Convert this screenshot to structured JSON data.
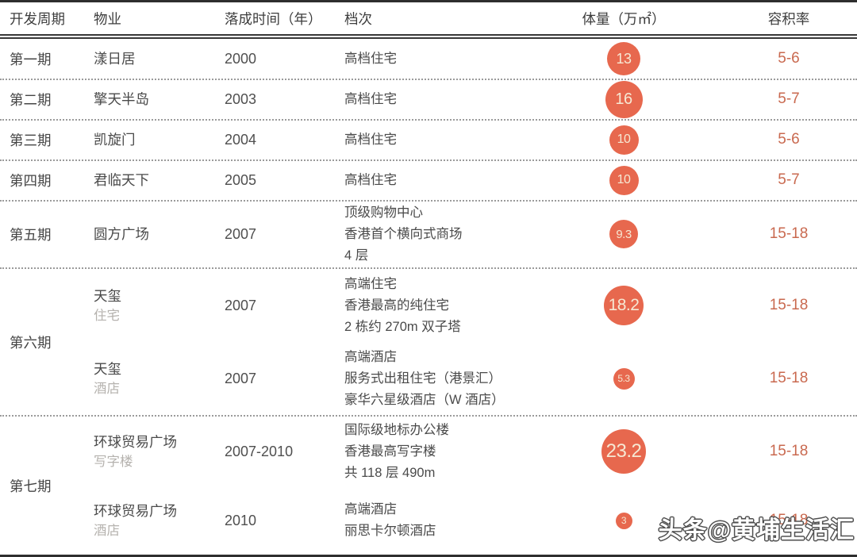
{
  "header": {
    "phase": "开发周期",
    "property": "物业",
    "year": "落成时间（年）",
    "grade": "档次",
    "volume": "体量（万㎡）",
    "ratio": "容积率"
  },
  "rows": [
    {
      "phase": "第一期",
      "property": "漾日居",
      "year": "2000",
      "grade": [
        "高档住宅"
      ],
      "volume": 13,
      "ratio": "5-6"
    },
    {
      "phase": "第二期",
      "property": "擎天半岛",
      "year": "2003",
      "grade": [
        "高档住宅"
      ],
      "volume": 16,
      "ratio": "5-7"
    },
    {
      "phase": "第三期",
      "property": "凯旋门",
      "year": "2004",
      "grade": [
        "高档住宅"
      ],
      "volume": 10,
      "ratio": "5-6"
    },
    {
      "phase": "第四期",
      "property": "君临天下",
      "year": "2005",
      "grade": [
        "高档住宅"
      ],
      "volume": 10,
      "ratio": "5-7"
    },
    {
      "phase": "第五期",
      "property": "圆方广场",
      "year": "2007",
      "grade": [
        "顶级购物中心",
        "香港首个横向式商场",
        "4 层"
      ],
      "volume": 9.3,
      "ratio": "15-18"
    },
    {
      "phase": "第六期",
      "property": "天玺",
      "sub": "住宅",
      "year": "2007",
      "grade": [
        "高端住宅",
        "香港最高的纯住宅",
        "2 栋约 270m 双子塔"
      ],
      "volume": 18.2,
      "ratio": "15-18"
    },
    {
      "property": "天玺",
      "sub": "酒店",
      "year": "2007",
      "grade": [
        "高端酒店",
        "服务式出租住宅（港景汇）",
        "豪华六星级酒店（W 酒店）"
      ],
      "volume": 5.3,
      "ratio": "15-18"
    },
    {
      "phase": "第七期",
      "property": "环球贸易广场",
      "sub": "写字楼",
      "year": "2007-2010",
      "grade": [
        "国际级地标办公楼",
        "香港最高写字楼",
        "共 118 层 490m"
      ],
      "volume": 23.2,
      "ratio": "15-18"
    },
    {
      "property": "环球贸易广场",
      "sub": "酒店",
      "year": "2010",
      "grade": [
        "高端酒店",
        "丽思卡尔顿酒店"
      ],
      "volume": 3,
      "ratio": "15-18"
    }
  ],
  "watermark": "头条@黄埔生活汇",
  "colors": {
    "bubble_fill": "#e7684e",
    "bubble_text": "#f6e8d3",
    "ratio_text": "#c9694f",
    "rule_dark": "#2e2e2e",
    "sub_label_gray": "#b5b2ae"
  },
  "chart_data": {
    "type": "table",
    "columns": [
      "开发周期",
      "物业",
      "落成时间（年）",
      "档次",
      "体量（万㎡）",
      "容积率"
    ],
    "rows": [
      [
        "第一期",
        "漾日居",
        "2000",
        "高档住宅",
        13,
        "5-6"
      ],
      [
        "第二期",
        "擎天半岛",
        "2003",
        "高档住宅",
        16,
        "5-7"
      ],
      [
        "第三期",
        "凯旋门",
        "2004",
        "高档住宅",
        10,
        "5-6"
      ],
      [
        "第四期",
        "君临天下",
        "2005",
        "高档住宅",
        10,
        "5-7"
      ],
      [
        "第五期",
        "圆方广场",
        "2007",
        "顶级购物中心；香港首个横向式商场；4 层",
        9.3,
        "15-18"
      ],
      [
        "第六期",
        "天玺（住宅）",
        "2007",
        "高端住宅；香港最高的纯住宅；2 栋约 270m 双子塔",
        18.2,
        "15-18"
      ],
      [
        "第六期",
        "天玺（酒店）",
        "2007",
        "高端酒店；服务式出租住宅（港景汇）；豪华六星级酒店（W 酒店）",
        5.3,
        "15-18"
      ],
      [
        "第七期",
        "环球贸易广场（写字楼）",
        "2007-2010",
        "国际级地标办公楼；香港最高写字楼；共 118 层 490m",
        23.2,
        "15-18"
      ],
      [
        "第七期",
        "环球贸易广场（酒店）",
        "2010",
        "高端酒店；丽思卡尔顿酒店",
        3,
        "15-18"
      ]
    ],
    "layout_hints": {
      "volume_encoding": "bubble size proportional to 体量 value",
      "grid": "dotted row separators, thick top/bottom rules"
    }
  }
}
